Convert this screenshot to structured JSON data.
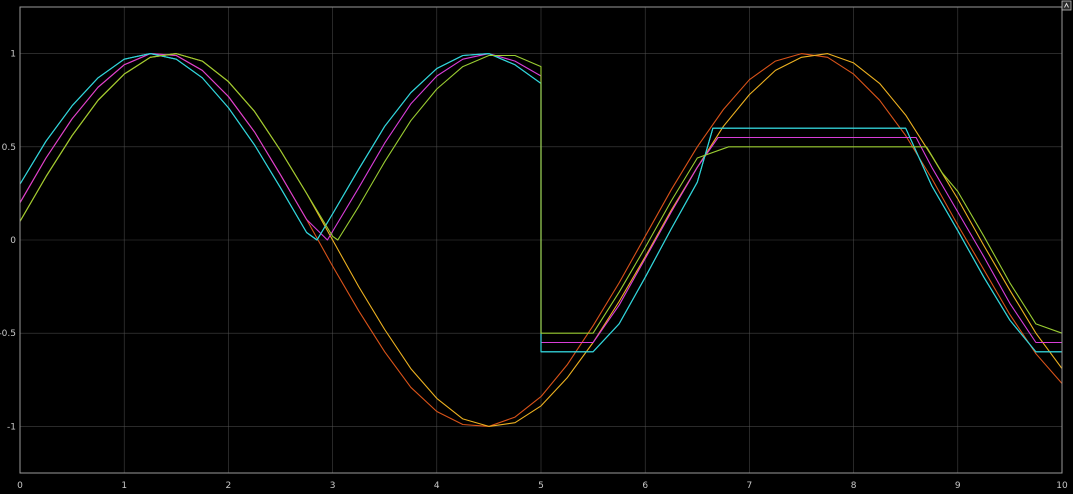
{
  "window": {
    "corner_button_icon": "restore-icon"
  },
  "chart_data": {
    "type": "line",
    "title": "",
    "xlabel": "",
    "ylabel": "",
    "xlim": [
      0,
      10
    ],
    "ylim": [
      -1.25,
      1.25
    ],
    "grid": true,
    "legend": "none",
    "background": "#000000",
    "grid_color": "#5a5a5a",
    "x_ticks": [
      "0",
      "1",
      "2",
      "3",
      "4",
      "5",
      "6",
      "7",
      "8",
      "9",
      "10"
    ],
    "y_ticks": [
      "1",
      "0.5",
      "0",
      "-0.5",
      "-1"
    ],
    "y_tick_values": [
      1,
      0.5,
      0,
      -0.5,
      -1
    ],
    "series": [
      {
        "color": "#d95319",
        "points": [
          [
            0,
            0.2
          ],
          [
            0.25,
            0.44
          ],
          [
            0.5,
            0.65
          ],
          [
            0.75,
            0.82
          ],
          [
            1.0,
            0.94
          ],
          [
            1.25,
            1.0
          ],
          [
            1.5,
            0.99
          ],
          [
            1.75,
            0.91
          ],
          [
            2.0,
            0.77
          ],
          [
            2.25,
            0.58
          ],
          [
            2.5,
            0.35
          ],
          [
            2.75,
            0.11
          ],
          [
            3.0,
            -0.14
          ],
          [
            3.25,
            -0.38
          ],
          [
            3.5,
            -0.6
          ],
          [
            3.75,
            -0.79
          ],
          [
            4.0,
            -0.92
          ],
          [
            4.25,
            -0.99
          ],
          [
            4.5,
            -1.0
          ],
          [
            4.75,
            -0.95
          ],
          [
            5.0,
            -0.84
          ],
          [
            5.25,
            -0.67
          ],
          [
            5.5,
            -0.46
          ],
          [
            5.75,
            -0.23
          ],
          [
            6.0,
            0.02
          ],
          [
            6.25,
            0.27
          ],
          [
            6.5,
            0.5
          ],
          [
            6.75,
            0.7
          ],
          [
            7.0,
            0.86
          ],
          [
            7.25,
            0.96
          ],
          [
            7.5,
            1.0
          ],
          [
            7.75,
            0.98
          ],
          [
            8.0,
            0.89
          ],
          [
            8.25,
            0.75
          ],
          [
            8.5,
            0.56
          ],
          [
            8.75,
            0.33
          ],
          [
            9.0,
            0.08
          ],
          [
            9.25,
            -0.16
          ],
          [
            9.5,
            -0.4
          ],
          [
            9.75,
            -0.61
          ],
          [
            10.0,
            -0.77
          ]
        ]
      },
      {
        "color": "#edb120",
        "points": [
          [
            0,
            0.1
          ],
          [
            0.25,
            0.34
          ],
          [
            0.5,
            0.56
          ],
          [
            0.75,
            0.75
          ],
          [
            1.0,
            0.89
          ],
          [
            1.25,
            0.98
          ],
          [
            1.5,
            1.0
          ],
          [
            1.75,
            0.96
          ],
          [
            2.0,
            0.85
          ],
          [
            2.25,
            0.69
          ],
          [
            2.5,
            0.48
          ],
          [
            2.75,
            0.25
          ],
          [
            3.0,
            0.0
          ],
          [
            3.25,
            -0.25
          ],
          [
            3.5,
            -0.48
          ],
          [
            3.75,
            -0.69
          ],
          [
            4.0,
            -0.85
          ],
          [
            4.25,
            -0.96
          ],
          [
            4.5,
            -1.0
          ],
          [
            4.75,
            -0.98
          ],
          [
            5.0,
            -0.89
          ],
          [
            5.25,
            -0.74
          ],
          [
            5.5,
            -0.55
          ],
          [
            5.75,
            -0.33
          ],
          [
            6.0,
            -0.09
          ],
          [
            6.25,
            0.16
          ],
          [
            6.5,
            0.39
          ],
          [
            6.75,
            0.61
          ],
          [
            7.0,
            0.78
          ],
          [
            7.25,
            0.91
          ],
          [
            7.5,
            0.98
          ],
          [
            7.75,
            1.0
          ],
          [
            8.0,
            0.95
          ],
          [
            8.25,
            0.84
          ],
          [
            8.5,
            0.67
          ],
          [
            8.75,
            0.45
          ],
          [
            9.0,
            0.22
          ],
          [
            9.25,
            -0.03
          ],
          [
            9.5,
            -0.27
          ],
          [
            9.75,
            -0.5
          ],
          [
            10.0,
            -0.69
          ]
        ]
      },
      {
        "color": "#d93dd9",
        "points": [
          [
            0,
            0.2
          ],
          [
            0.25,
            0.44
          ],
          [
            0.5,
            0.65
          ],
          [
            0.75,
            0.82
          ],
          [
            1.0,
            0.94
          ],
          [
            1.25,
            1.0
          ],
          [
            1.5,
            0.99
          ],
          [
            1.75,
            0.91
          ],
          [
            2.0,
            0.77
          ],
          [
            2.25,
            0.58
          ],
          [
            2.5,
            0.35
          ],
          [
            2.75,
            0.11
          ],
          [
            2.95,
            0.0
          ],
          [
            3.25,
            0.28
          ],
          [
            3.5,
            0.52
          ],
          [
            3.75,
            0.73
          ],
          [
            4.0,
            0.88
          ],
          [
            4.25,
            0.97
          ],
          [
            4.5,
            1.0
          ],
          [
            4.75,
            0.96
          ],
          [
            5.0,
            0.88
          ],
          [
            5.0,
            -0.55
          ],
          [
            5.5,
            -0.55
          ],
          [
            5.75,
            -0.35
          ],
          [
            6.0,
            -0.1
          ],
          [
            6.25,
            0.15
          ],
          [
            6.5,
            0.39
          ],
          [
            6.7,
            0.55
          ],
          [
            8.6,
            0.55
          ],
          [
            8.75,
            0.39
          ],
          [
            9.0,
            0.15
          ],
          [
            9.25,
            -0.09
          ],
          [
            9.5,
            -0.34
          ],
          [
            9.75,
            -0.55
          ],
          [
            10.0,
            -0.55
          ]
        ]
      },
      {
        "color": "#4dbeee",
        "points": [
          [
            0,
            0.3
          ],
          [
            0.25,
            0.53
          ],
          [
            0.5,
            0.72
          ],
          [
            0.75,
            0.87
          ],
          [
            1.0,
            0.97
          ],
          [
            1.25,
            1.0
          ],
          [
            1.5,
            0.97
          ],
          [
            1.75,
            0.87
          ],
          [
            2.0,
            0.71
          ],
          [
            2.25,
            0.51
          ],
          [
            2.5,
            0.28
          ],
          [
            2.75,
            0.04
          ],
          [
            2.85,
            0.0
          ],
          [
            3.0,
            0.14
          ],
          [
            3.25,
            0.38
          ],
          [
            3.5,
            0.61
          ],
          [
            3.75,
            0.79
          ],
          [
            4.0,
            0.92
          ],
          [
            4.25,
            0.99
          ],
          [
            4.5,
            1.0
          ],
          [
            4.75,
            0.94
          ],
          [
            5.0,
            0.84
          ],
          [
            5.0,
            -0.6
          ],
          [
            5.5,
            -0.6
          ],
          [
            5.75,
            -0.45
          ],
          [
            6.0,
            -0.2
          ],
          [
            6.25,
            0.06
          ],
          [
            6.5,
            0.31
          ],
          [
            6.65,
            0.6
          ],
          [
            8.5,
            0.6
          ],
          [
            8.75,
            0.29
          ],
          [
            9.0,
            0.05
          ],
          [
            9.25,
            -0.2
          ],
          [
            9.5,
            -0.43
          ],
          [
            9.75,
            -0.6
          ],
          [
            10.0,
            -0.6
          ]
        ]
      },
      {
        "color": "#2ed6d6",
        "points": [
          [
            0,
            0.3
          ],
          [
            0.25,
            0.53
          ],
          [
            0.5,
            0.72
          ],
          [
            0.75,
            0.87
          ],
          [
            1.0,
            0.97
          ],
          [
            1.25,
            1.0
          ],
          [
            1.5,
            0.97
          ],
          [
            1.75,
            0.87
          ],
          [
            2.0,
            0.71
          ],
          [
            2.25,
            0.51
          ],
          [
            2.5,
            0.28
          ],
          [
            2.75,
            0.04
          ],
          [
            2.85,
            0.0
          ],
          [
            3.0,
            0.14
          ],
          [
            3.25,
            0.38
          ],
          [
            3.5,
            0.61
          ],
          [
            3.75,
            0.79
          ],
          [
            4.0,
            0.92
          ],
          [
            4.25,
            0.99
          ],
          [
            4.5,
            1.0
          ],
          [
            4.75,
            0.94
          ],
          [
            5.0,
            0.84
          ],
          [
            5.0,
            -0.6
          ],
          [
            5.5,
            -0.6
          ],
          [
            5.75,
            -0.45
          ],
          [
            6.0,
            -0.2
          ],
          [
            6.25,
            0.06
          ],
          [
            6.5,
            0.31
          ],
          [
            6.65,
            0.6
          ],
          [
            8.5,
            0.6
          ],
          [
            8.75,
            0.29
          ],
          [
            9.0,
            0.05
          ],
          [
            9.25,
            -0.2
          ],
          [
            9.5,
            -0.43
          ],
          [
            9.75,
            -0.6
          ],
          [
            10.0,
            -0.6
          ]
        ]
      },
      {
        "color": "#9acd32",
        "points": [
          [
            0,
            0.1
          ],
          [
            0.25,
            0.34
          ],
          [
            0.5,
            0.56
          ],
          [
            0.75,
            0.75
          ],
          [
            1.0,
            0.89
          ],
          [
            1.25,
            0.98
          ],
          [
            1.5,
            1.0
          ],
          [
            1.75,
            0.96
          ],
          [
            2.0,
            0.85
          ],
          [
            2.25,
            0.69
          ],
          [
            2.5,
            0.48
          ],
          [
            2.75,
            0.25
          ],
          [
            3.0,
            0.02
          ],
          [
            3.05,
            0.0
          ],
          [
            3.25,
            0.18
          ],
          [
            3.5,
            0.42
          ],
          [
            3.75,
            0.64
          ],
          [
            4.0,
            0.81
          ],
          [
            4.25,
            0.93
          ],
          [
            4.5,
            0.99
          ],
          [
            4.75,
            0.99
          ],
          [
            5.0,
            0.93
          ],
          [
            5.0,
            -0.5
          ],
          [
            5.5,
            -0.5
          ],
          [
            5.75,
            -0.28
          ],
          [
            6.0,
            -0.04
          ],
          [
            6.25,
            0.21
          ],
          [
            6.5,
            0.44
          ],
          [
            6.8,
            0.5
          ],
          [
            8.7,
            0.5
          ],
          [
            8.85,
            0.36
          ],
          [
            9.0,
            0.26
          ],
          [
            9.25,
            0.02
          ],
          [
            9.5,
            -0.23
          ],
          [
            9.75,
            -0.45
          ],
          [
            10.0,
            -0.5
          ]
        ]
      }
    ]
  }
}
